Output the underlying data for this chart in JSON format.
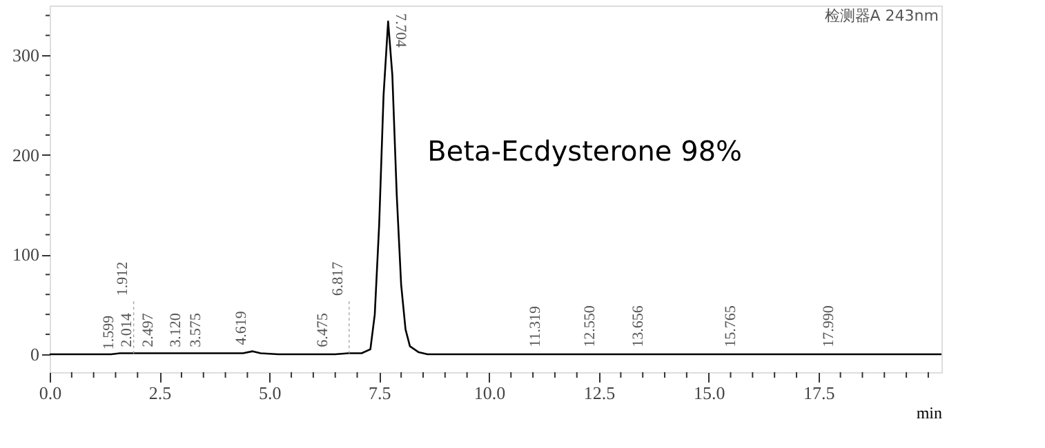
{
  "chart_data": {
    "type": "line",
    "xlabel": "min",
    "x": [
      0,
      1.4,
      1.6,
      1.9,
      2.0,
      2.5,
      2.8,
      3.1,
      3.6,
      4.4,
      4.62,
      4.8,
      5.2,
      6.0,
      6.5,
      6.8,
      7.1,
      7.3,
      7.4,
      7.5,
      7.6,
      7.704,
      7.8,
      7.9,
      8.0,
      8.1,
      8.2,
      8.4,
      8.6,
      9.0,
      11.3,
      12.55,
      13.66,
      15.77,
      17.99,
      20.3
    ],
    "series": [
      {
        "color": "#000000",
        "values": [
          0,
          0,
          1,
          1,
          1,
          1,
          1,
          1,
          1,
          1,
          3,
          1,
          0,
          0,
          0,
          1,
          1,
          5,
          40,
          130,
          260,
          334,
          280,
          160,
          70,
          25,
          8,
          2,
          0,
          0,
          0,
          0,
          0,
          0,
          0,
          0
        ]
      }
    ],
    "xlim": [
      0,
      20.3
    ],
    "ylim": [
      -18,
      350
    ],
    "xticks": [
      {
        "value": 0,
        "label": "0.0"
      },
      {
        "value": 0.5,
        "label": null
      },
      {
        "value": 1,
        "label": null
      },
      {
        "value": 1.5,
        "label": null
      },
      {
        "value": 2,
        "label": null
      },
      2.5,
      {
        "value": 3,
        "label": null
      },
      {
        "value": 3.5,
        "label": null
      },
      {
        "value": 4,
        "label": null
      },
      {
        "value": 4.5,
        "label": null
      },
      {
        "value": 5,
        "label": "5.0"
      },
      {
        "value": 5.5,
        "label": null
      },
      {
        "value": 6,
        "label": null
      },
      {
        "value": 6.5,
        "label": null
      },
      {
        "value": 7,
        "label": null
      },
      7.5,
      {
        "value": 8,
        "label": null
      },
      {
        "value": 8.5,
        "label": null
      },
      {
        "value": 9,
        "label": null
      },
      {
        "value": 9.5,
        "label": null
      },
      {
        "value": 10,
        "label": "10.0"
      },
      {
        "value": 10.5,
        "label": null
      },
      {
        "value": 11,
        "label": null
      },
      {
        "value": 11.5,
        "label": null
      },
      {
        "value": 12,
        "label": null
      },
      12.5,
      {
        "value": 13,
        "label": null
      },
      {
        "value": 13.5,
        "label": null
      },
      {
        "value": 14,
        "label": null
      },
      {
        "value": 14.5,
        "label": null
      },
      {
        "value": 15,
        "label": "15.0"
      },
      {
        "value": 15.5,
        "label": null
      },
      {
        "value": 16,
        "label": null
      },
      {
        "value": 16.5,
        "label": null
      },
      {
        "value": 17,
        "label": null
      },
      17.5,
      {
        "value": 18,
        "label": null
      },
      {
        "value": 18.5,
        "label": null
      },
      {
        "value": 19,
        "label": null
      },
      {
        "value": 19.5,
        "label": null
      },
      {
        "value": 20,
        "label": null
      }
    ],
    "yticks": [
      0,
      {
        "value": 20,
        "label": null
      },
      {
        "value": 40,
        "label": null
      },
      {
        "value": 60,
        "label": null
      },
      {
        "value": 80,
        "label": null
      },
      100,
      {
        "value": 120,
        "label": null
      },
      {
        "value": 140,
        "label": null
      },
      {
        "value": 160,
        "label": null
      },
      {
        "value": 180,
        "label": null
      },
      200,
      {
        "value": 220,
        "label": null
      },
      {
        "value": 240,
        "label": null
      },
      {
        "value": 260,
        "label": null
      },
      {
        "value": 280,
        "label": null
      },
      300,
      {
        "value": 320,
        "label": null
      },
      {
        "value": 340,
        "label": null
      }
    ],
    "grid": false,
    "marker": "none",
    "line_style": "solid",
    "annotations": [
      {
        "text": "1.599",
        "x": 1.599,
        "y": 0.5
      },
      {
        "text": "1.912",
        "x": 1.912,
        "y": 0.5
      },
      {
        "text": "2.014",
        "x": 2.014,
        "y": 3
      },
      {
        "text": "2.497",
        "x": 2.497,
        "y": 3
      },
      {
        "text": "3.120",
        "x": 3.12,
        "y": 3
      },
      {
        "text": "3.575",
        "x": 3.575,
        "y": 3
      },
      {
        "text": "4.619",
        "x": 4.619,
        "y": 5
      },
      {
        "text": "6.475",
        "x": 6.475,
        "y": 3
      },
      {
        "text": "6.817",
        "x": 6.817,
        "y": 0.5
      },
      {
        "text": "7.704",
        "x": 7.704,
        "y": 334
      },
      {
        "text": "11.319",
        "x": 11.319,
        "y": 3
      },
      {
        "text": "12.550",
        "x": 12.55,
        "y": 3
      },
      {
        "text": "13.656",
        "x": 13.656,
        "y": 3
      },
      {
        "text": "15.765",
        "x": 15.765,
        "y": 3
      },
      {
        "text": "17.990",
        "x": 17.99,
        "y": 3
      },
      "Beta-Ecdysterone 98%",
      "检测器A 243nm"
    ]
  }
}
